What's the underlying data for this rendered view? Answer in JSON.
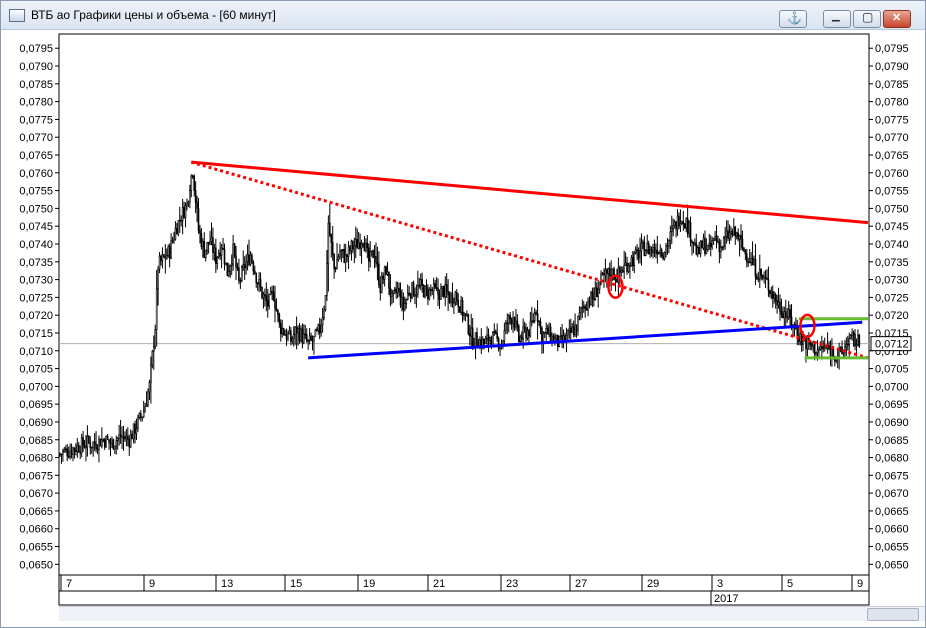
{
  "window": {
    "title": "ВТБ ао Графики цены и объема - [60 минут]",
    "icons": {
      "app": "chart-window-icon",
      "anchor": "anchor-icon",
      "minimize": "minimize-icon",
      "restore": "restore-icon",
      "close": "close-icon"
    },
    "anchor_glyph": "⚓",
    "minimize_glyph": "▁",
    "restore_glyph": "▢",
    "close_glyph": "✕",
    "close_color": "#c6452d"
  },
  "chart_data": {
    "type": "candlestick",
    "title": "",
    "xlabel": "",
    "ylabel": "",
    "ylim": [
      0.0647,
      0.0799
    ],
    "y_ticks": [
      "0,0795",
      "0,0790",
      "0,0785",
      "0,0780",
      "0,0775",
      "0,0770",
      "0,0765",
      "0,0760",
      "0,0755",
      "0,0750",
      "0,0745",
      "0,0740",
      "0,0735",
      "0,0730",
      "0,0725",
      "0,0720",
      "0,0715",
      "0,0710",
      "0,0705",
      "0,0700",
      "0,0695",
      "0,0690",
      "0,0685",
      "0,0680",
      "0,0675",
      "0,0670",
      "0,0665",
      "0,0660",
      "0,0655",
      "0,0650"
    ],
    "x_ticks": [
      "7",
      "9",
      "13",
      "15",
      "19",
      "21",
      "23",
      "27",
      "29",
      "3",
      "5",
      "9"
    ],
    "x_year_label": "2017",
    "grid": false,
    "last_price_label": "0,0712",
    "last_price": 0.0712,
    "price_path": [
      [
        0,
        0.0681
      ],
      [
        6,
        0.0682
      ],
      [
        12,
        0.0683
      ],
      [
        18,
        0.0684
      ],
      [
        24,
        0.0684
      ],
      [
        30,
        0.0685
      ],
      [
        36,
        0.0684
      ],
      [
        42,
        0.0686
      ],
      [
        48,
        0.0685
      ],
      [
        53,
        0.0689
      ],
      [
        58,
        0.0693
      ],
      [
        62,
        0.07
      ],
      [
        66,
        0.0717
      ],
      [
        68,
        0.0734
      ],
      [
        72,
        0.0736
      ],
      [
        76,
        0.0738
      ],
      [
        80,
        0.0744
      ],
      [
        84,
        0.0748
      ],
      [
        88,
        0.0751
      ],
      [
        90,
        0.0757
      ],
      [
        92,
        0.0761
      ],
      [
        96,
        0.0744
      ],
      [
        100,
        0.0738
      ],
      [
        104,
        0.0741
      ],
      [
        108,
        0.0736
      ],
      [
        112,
        0.074
      ],
      [
        116,
        0.0732
      ],
      [
        120,
        0.0738
      ],
      [
        124,
        0.0729
      ],
      [
        128,
        0.0734
      ],
      [
        132,
        0.0737
      ],
      [
        136,
        0.0731
      ],
      [
        140,
        0.0726
      ],
      [
        144,
        0.0723
      ],
      [
        148,
        0.0726
      ],
      [
        152,
        0.0717
      ],
      [
        156,
        0.0715
      ],
      [
        160,
        0.0713
      ],
      [
        164,
        0.0716
      ],
      [
        168,
        0.0714
      ],
      [
        172,
        0.0712
      ],
      [
        176,
        0.0713
      ],
      [
        180,
        0.0716
      ],
      [
        184,
        0.0725
      ],
      [
        186,
        0.0746
      ],
      [
        190,
        0.0733
      ],
      [
        194,
        0.0738
      ],
      [
        198,
        0.0736
      ],
      [
        202,
        0.0739
      ],
      [
        206,
        0.074
      ],
      [
        210,
        0.0742
      ],
      [
        214,
        0.0735
      ],
      [
        218,
        0.0738
      ],
      [
        222,
        0.0728
      ],
      [
        226,
        0.0733
      ],
      [
        230,
        0.0724
      ],
      [
        234,
        0.0727
      ],
      [
        238,
        0.0722
      ],
      [
        242,
        0.0727
      ],
      [
        246,
        0.0727
      ],
      [
        250,
        0.0728
      ],
      [
        254,
        0.0726
      ],
      [
        258,
        0.0727
      ],
      [
        262,
        0.0726
      ],
      [
        266,
        0.0727
      ],
      [
        270,
        0.0725
      ],
      [
        274,
        0.0726
      ],
      [
        278,
        0.0722
      ],
      [
        282,
        0.0718
      ],
      [
        286,
        0.0713
      ],
      [
        290,
        0.0713
      ],
      [
        294,
        0.0712
      ],
      [
        298,
        0.0714
      ],
      [
        302,
        0.0713
      ],
      [
        306,
        0.0712
      ],
      [
        310,
        0.0718
      ],
      [
        314,
        0.072
      ],
      [
        318,
        0.0713
      ],
      [
        322,
        0.0715
      ],
      [
        326,
        0.0716
      ],
      [
        330,
        0.0722
      ],
      [
        334,
        0.0714
      ],
      [
        338,
        0.0715
      ],
      [
        342,
        0.0713
      ],
      [
        346,
        0.0712
      ],
      [
        350,
        0.0713
      ],
      [
        354,
        0.0715
      ],
      [
        358,
        0.0717
      ],
      [
        362,
        0.0722
      ],
      [
        366,
        0.0724
      ],
      [
        370,
        0.0725
      ],
      [
        374,
        0.0729
      ],
      [
        378,
        0.0731
      ],
      [
        382,
        0.0732
      ],
      [
        386,
        0.0731
      ],
      [
        390,
        0.0733
      ],
      [
        394,
        0.0735
      ],
      [
        398,
        0.0736
      ],
      [
        402,
        0.0738
      ],
      [
        406,
        0.0739
      ],
      [
        410,
        0.0738
      ],
      [
        414,
        0.0739
      ],
      [
        418,
        0.0738
      ],
      [
        422,
        0.0741
      ],
      [
        426,
        0.0745
      ],
      [
        430,
        0.0748
      ],
      [
        434,
        0.0746
      ],
      [
        438,
        0.0742
      ],
      [
        442,
        0.0737
      ],
      [
        446,
        0.074
      ],
      [
        450,
        0.0738
      ],
      [
        454,
        0.0742
      ],
      [
        458,
        0.0739
      ],
      [
        462,
        0.0742
      ],
      [
        466,
        0.0743
      ],
      [
        470,
        0.0742
      ],
      [
        474,
        0.0738
      ],
      [
        478,
        0.0736
      ],
      [
        482,
        0.0733
      ],
      [
        486,
        0.0731
      ],
      [
        490,
        0.0729
      ],
      [
        494,
        0.0726
      ],
      [
        498,
        0.0723
      ],
      [
        502,
        0.0721
      ],
      [
        506,
        0.0719
      ],
      [
        510,
        0.0716
      ],
      [
        514,
        0.0713
      ],
      [
        518,
        0.0712
      ],
      [
        522,
        0.0711
      ],
      [
        526,
        0.071
      ],
      [
        530,
        0.0711
      ],
      [
        534,
        0.071
      ],
      [
        538,
        0.0709
      ],
      [
        542,
        0.0709
      ],
      [
        546,
        0.0713
      ],
      [
        550,
        0.0713
      ],
      [
        554,
        0.0712
      ]
    ],
    "path_x_max": 554,
    "annotations": [
      {
        "kind": "trend-line",
        "name": "upper-resistance",
        "color": "#ff0000",
        "style": "solid",
        "from": [
          91,
          0.0763
        ],
        "to": [
          560,
          0.0746
        ]
      },
      {
        "kind": "trend-line",
        "name": "dotted-trendline",
        "color": "#ff0000",
        "style": "dotted",
        "from": [
          91,
          0.0763
        ],
        "to": [
          560,
          0.0708
        ]
      },
      {
        "kind": "trend-line",
        "name": "lower-support",
        "color": "#0000ff",
        "style": "solid",
        "from": [
          172,
          0.0708
        ],
        "to": [
          556,
          0.0718
        ]
      },
      {
        "kind": "channel-line",
        "name": "green-top",
        "color": "#66bb33",
        "style": "solid",
        "from": [
          512,
          0.0719
        ],
        "to": [
          560,
          0.0719
        ]
      },
      {
        "kind": "channel-line",
        "name": "green-bottom",
        "color": "#66bb33",
        "style": "solid",
        "from": [
          516,
          0.0708
        ],
        "to": [
          560,
          0.0708
        ]
      },
      {
        "kind": "circle",
        "name": "breakout-circle-1",
        "color": "#ff0000",
        "at": [
          385,
          0.0728
        ]
      },
      {
        "kind": "circle",
        "name": "breakout-circle-2",
        "color": "#ff0000",
        "at": [
          518,
          0.0717
        ]
      }
    ],
    "horizontal_line_color": "#b0b0b0",
    "candle_color": "#000000"
  }
}
